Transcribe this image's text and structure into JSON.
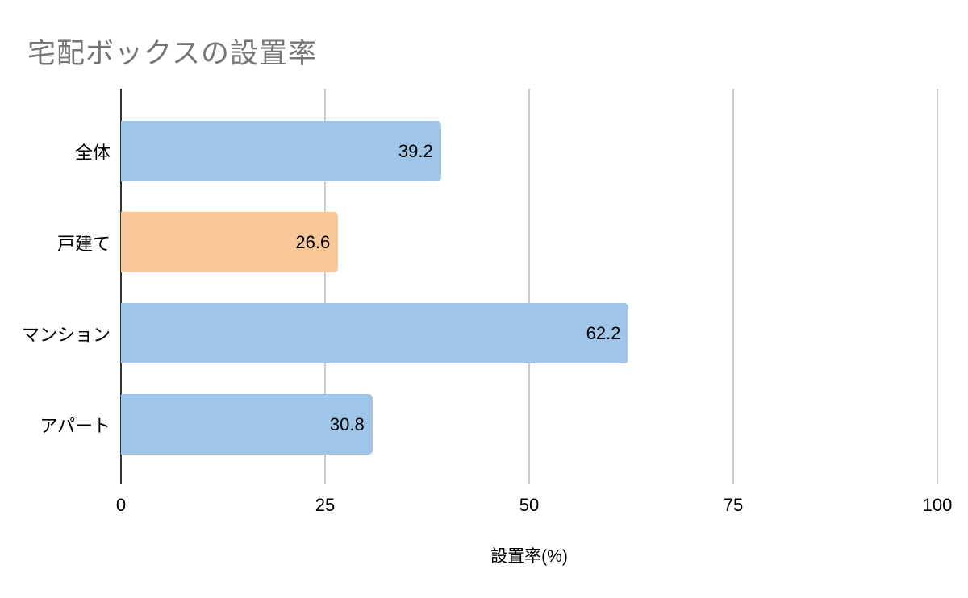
{
  "title": "宅配ボックスの設置率",
  "chart_data": {
    "type": "bar",
    "orientation": "horizontal",
    "title": "宅配ボックスの設置率",
    "categories": [
      "全体",
      "戸建て",
      "マンション",
      "アパート"
    ],
    "values": [
      39.2,
      26.6,
      62.2,
      30.8
    ],
    "value_labels": [
      "39.2",
      "26.6",
      "62.2",
      "30.8"
    ],
    "bar_colors": [
      "#9fc5e8",
      "#f8c898",
      "#9fc5e8",
      "#9fc5e8"
    ],
    "xlabel": "設置率(%)",
    "ylabel": "",
    "xlim": [
      0,
      100
    ],
    "xticks": [
      0,
      25,
      50,
      75,
      100
    ],
    "grid": true,
    "legend": false
  },
  "colors": {
    "background": "#ffffff",
    "title_text": "#757575",
    "bar_blue": "#9fc5e8",
    "bar_orange": "#f8c898",
    "axis_line": "#333333",
    "gridline": "#cccccc",
    "label_text": "#000000"
  }
}
